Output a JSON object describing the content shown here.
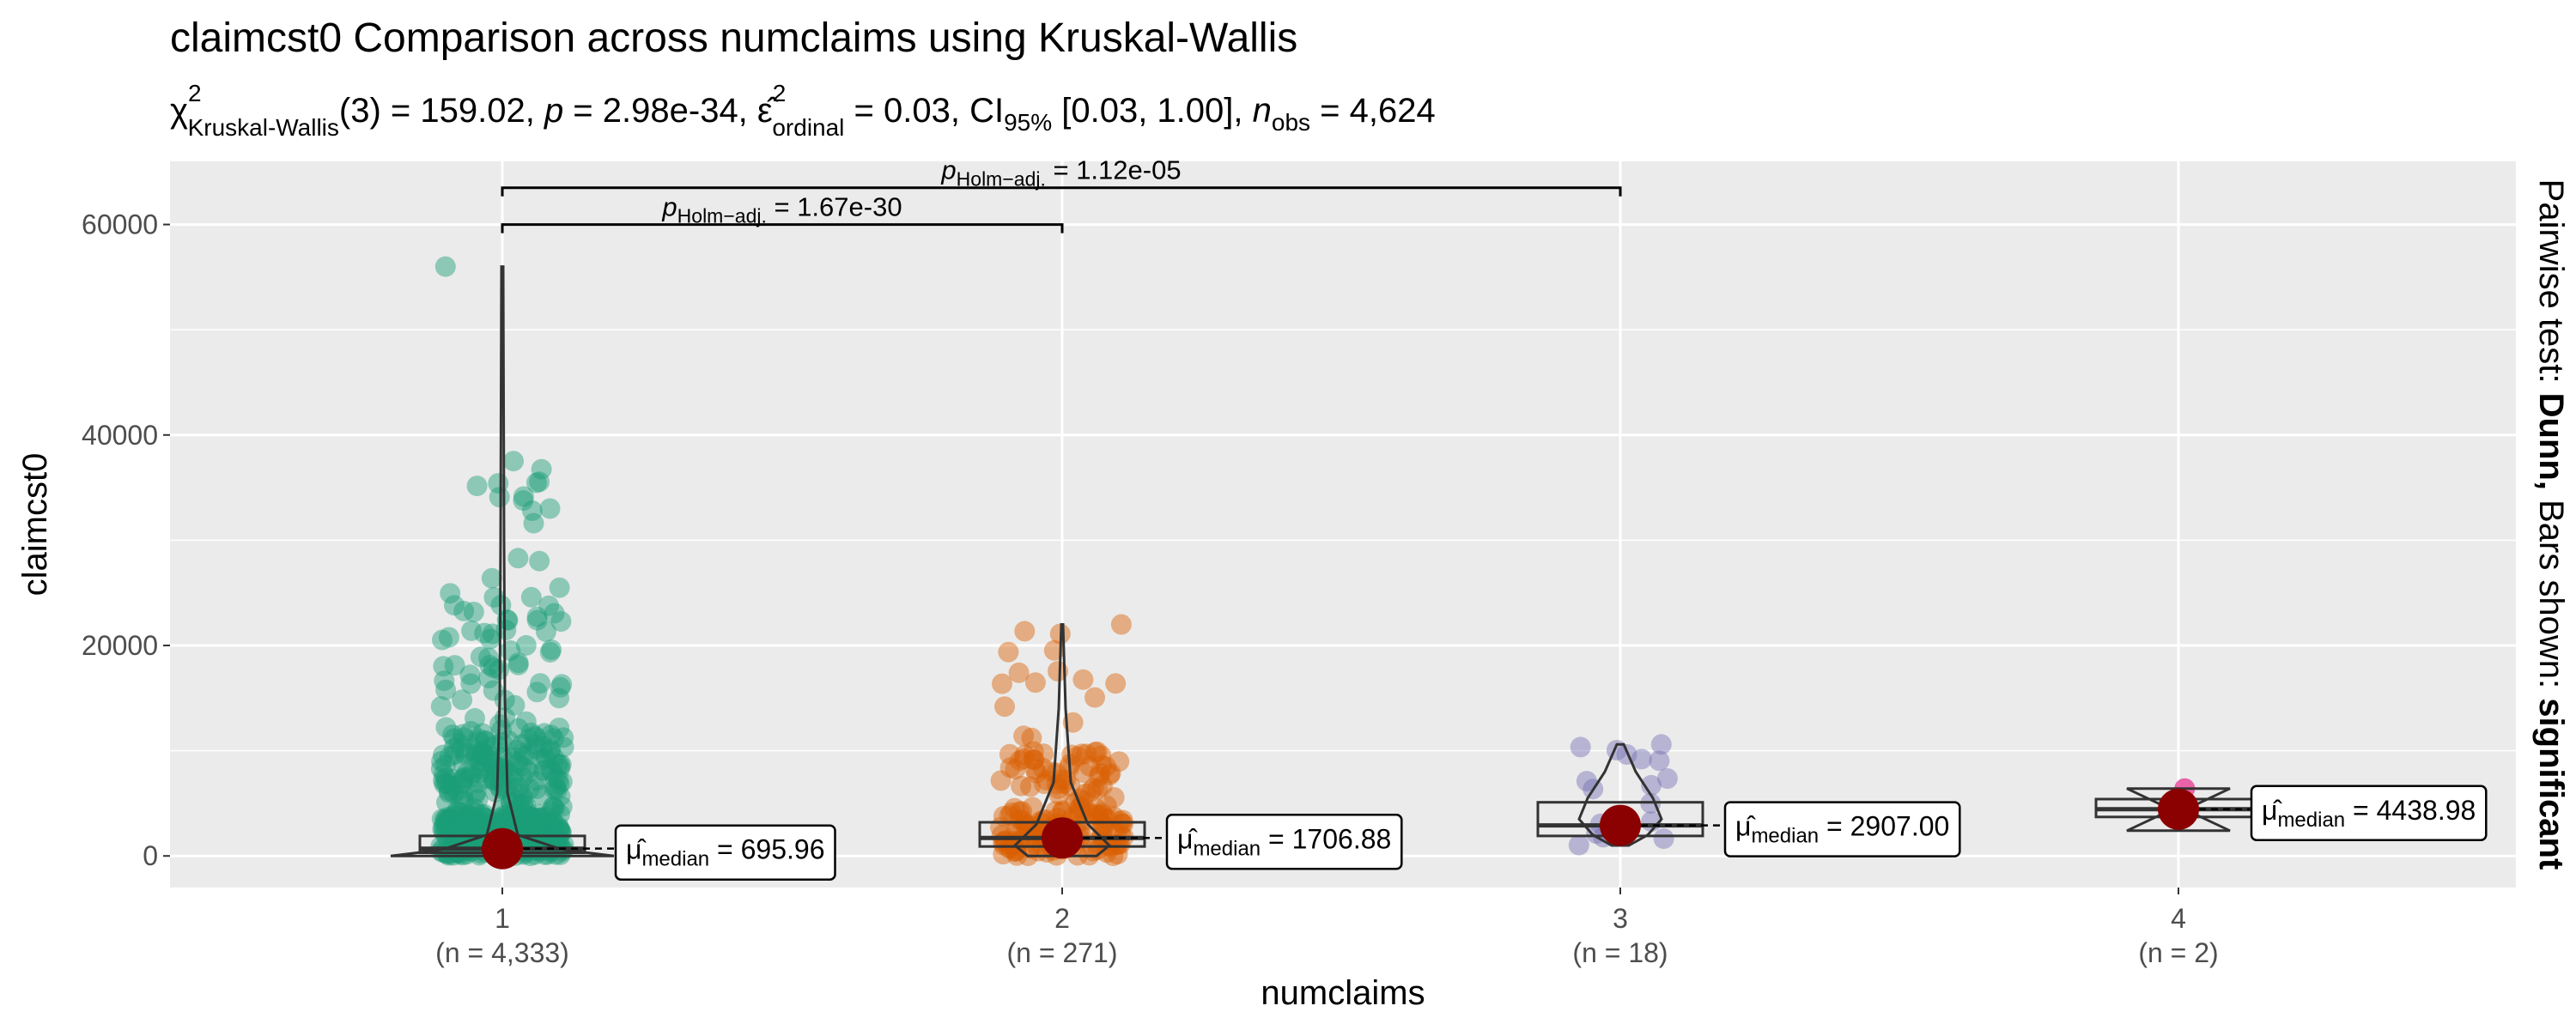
{
  "chart_data": {
    "type": "violin-box-scatter",
    "title": "claimcst0 Comparison across numclaims using Kruskal-Wallis",
    "subtitle": {
      "stat_symbol": "χ",
      "stat_sup": "2",
      "stat_sub": "Kruskal-Wallis",
      "stat_rest": "(3) = 159.02, ",
      "p_label": "p",
      "p_value": " = 2.98e-34, ",
      "effect_symbol": "ε̂",
      "effect_sup": "2",
      "effect_sub": "ordinal",
      "effect_value": " = 0.03, CI",
      "ci_sub": "95%",
      "ci_value": " [0.03, 1.00], ",
      "n_label": "n",
      "n_sub": "obs",
      "n_value": " = 4,624"
    },
    "xlabel": "numclaims",
    "ylabel": "claimcst0",
    "caption": {
      "prefix": "Pairwise test: ",
      "test": "Dunn,",
      "middle": " Bars shown: ",
      "shown": "significant"
    },
    "ylim": [
      -3000,
      66000
    ],
    "yticks": [
      0,
      20000,
      40000,
      60000
    ],
    "ytick_labels": [
      "0",
      "20000",
      "40000",
      "60000"
    ],
    "grid": true,
    "categories": [
      "1",
      "2",
      "3",
      "4"
    ],
    "counts": [
      "(n = 4,333)",
      "(n = 271)",
      "(n = 18)",
      "(n = 2)"
    ],
    "colors": [
      "#1B9E77",
      "#D95F02",
      "#7570B3",
      "#E7298A"
    ],
    "median_marker_color": "#8B0000",
    "medians": [
      695.96,
      1706.88,
      2907.0,
      4438.98
    ],
    "median_label_symbol": "μ̂",
    "median_label_sub": "median",
    "median_labels": [
      " = 695.96",
      " = 1706.88",
      " = 2907.00",
      " = 4438.98"
    ],
    "boxes": [
      {
        "q1": 300,
        "median": 695.96,
        "q3": 1900
      },
      {
        "q1": 900,
        "median": 1706.88,
        "q3": 3200
      },
      {
        "q1": 1900,
        "median": 2907.0,
        "q3": 5100
      },
      {
        "q1": 3700,
        "median": 4438.98,
        "q3": 5400
      }
    ],
    "maxima": [
      56000,
      22000,
      10600,
      6400
    ],
    "comparisons": [
      {
        "group1": "1",
        "group2": "2",
        "p_sub": "Holm−adj.",
        "p_text": " = 1.67e-30",
        "y": 60000
      },
      {
        "group1": "1",
        "group2": "3",
        "p_sub": "Holm−adj.",
        "p_text": " = 1.12e-05",
        "y": 63500
      }
    ]
  }
}
